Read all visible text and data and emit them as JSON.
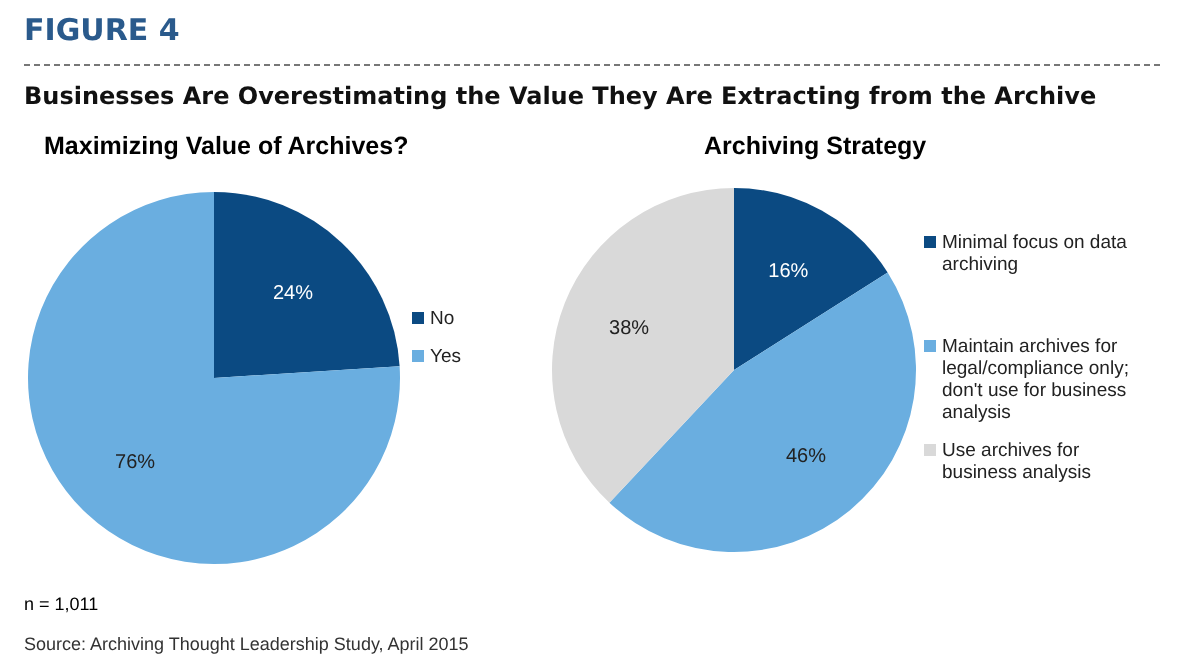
{
  "chart_data": [
    {
      "type": "pie",
      "title": "Maximizing Value of Archives?",
      "categories": [
        "No",
        "Yes"
      ],
      "values": [
        24,
        76
      ],
      "colors": [
        "#0b4a82",
        "#6aaee0"
      ],
      "value_labels": [
        "24%",
        "76%"
      ],
      "legend": "right",
      "annotations": [
        "FIGURE 4",
        "Businesses Are Overestimating the Value They Are Extracting from the Archive",
        "n = 1,011",
        "Source: Archiving Thought Leadership Study, April 2015"
      ]
    },
    {
      "type": "pie",
      "title": "Archiving Strategy",
      "categories": [
        "Minimal focus on data archiving",
        "Maintain archives for legal/compliance only; don't use for business analysis",
        "Use archives for business analysis"
      ],
      "values": [
        16,
        46,
        38
      ],
      "colors": [
        "#0b4a82",
        "#6aaee0",
        "#d9d9d9"
      ],
      "value_labels": [
        "16%",
        "46%",
        "38%"
      ],
      "legend": "right"
    }
  ]
}
